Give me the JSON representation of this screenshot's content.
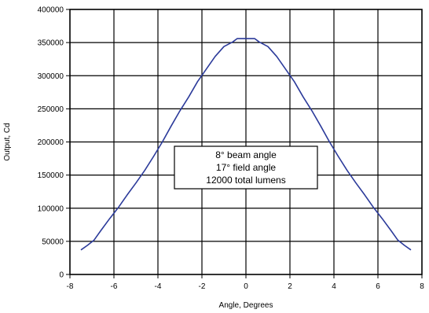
{
  "chart_data": {
    "type": "line",
    "title": "",
    "xlabel": "Angle, Degrees",
    "ylabel": "Output, Cd",
    "xlim": [
      -8,
      8
    ],
    "ylim": [
      0,
      400000
    ],
    "x_ticks": [
      "-8",
      "-6",
      "-4",
      "-2",
      "0",
      "2",
      "4",
      "6",
      "8"
    ],
    "y_ticks": [
      "0",
      "50000",
      "100000",
      "150000",
      "200000",
      "250000",
      "300000",
      "350000",
      "400000"
    ],
    "grid": true,
    "legend": "none",
    "series": [
      {
        "color": "#2b3a9a",
        "x": [
          -7.5,
          -7.2,
          -6.9,
          -6.6,
          -6.2,
          -5.8,
          -5.4,
          -5.0,
          -4.6,
          -4.2,
          -3.8,
          -3.4,
          -3.0,
          -2.6,
          -2.2,
          -1.8,
          -1.4,
          -1.0,
          -0.6,
          -0.4,
          0.0,
          0.4,
          0.6,
          1.0,
          1.4,
          1.8,
          2.2,
          2.6,
          3.0,
          3.4,
          3.8,
          4.2,
          4.6,
          5.0,
          5.4,
          5.8,
          6.2,
          6.6,
          6.9,
          7.2,
          7.5
        ],
        "y": [
          37000,
          44000,
          52000,
          66000,
          84000,
          101000,
          120000,
          138000,
          157000,
          178000,
          200000,
          224000,
          247000,
          268000,
          291000,
          310000,
          329000,
          344000,
          351000,
          356000,
          356000,
          356000,
          351000,
          344000,
          329000,
          310000,
          291000,
          268000,
          247000,
          224000,
          200000,
          178000,
          157000,
          138000,
          120000,
          101000,
          84000,
          66000,
          52000,
          44000,
          37000
        ]
      }
    ],
    "annotation": {
      "lines": [
        "8° beam angle",
        "17° field angle",
        "12000 total lumens"
      ]
    }
  }
}
